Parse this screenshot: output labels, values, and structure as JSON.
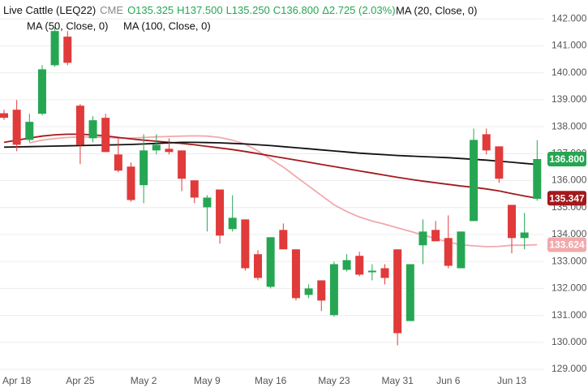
{
  "chart_data": {
    "type": "candlestick",
    "symbol": "Live Cattle (LEQ22)",
    "exchange": "CME",
    "ohlc_labels": [
      "O135.325",
      "H137.500",
      "L135.250",
      "C136.800",
      "Δ2.725 (2.03%)"
    ],
    "last_price_label": "136.800",
    "up_color": "#26a653",
    "down_color": "#e03a3a",
    "categories": [
      null,
      "Apr 18",
      null,
      null,
      null,
      null,
      "Apr 25",
      null,
      null,
      null,
      null,
      "May 2",
      null,
      null,
      null,
      null,
      "May 9",
      null,
      null,
      null,
      null,
      "May 16",
      null,
      null,
      null,
      null,
      "May 23",
      null,
      null,
      null,
      null,
      "May 31",
      null,
      null,
      null,
      "Jun 6",
      null,
      null,
      null,
      null,
      "Jun 13",
      null,
      null
    ],
    "open": [
      138.5,
      138.63,
      137.51,
      138.48,
      140.28,
      141.34,
      138.78,
      137.57,
      138.33,
      136.97,
      136.52,
      135.83,
      137.12,
      137.18,
      137.12,
      136.01,
      135.01,
      135.67,
      134.2,
      134.56,
      133.27,
      132.06,
      134.17,
      133.45,
      131.76,
      132.3,
      131.01,
      132.69,
      133.21,
      132.6,
      132.75,
      133.45,
      130.79,
      133.6,
      134.17,
      133.87,
      132.75,
      134.5,
      137.72,
      137.27,
      135.1,
      133.87,
      135.325
    ],
    "high": [
      138.63,
      138.99,
      138.48,
      140.28,
      141.7,
      141.55,
      138.84,
      138.39,
      138.48,
      137.57,
      136.67,
      137.72,
      137.72,
      137.57,
      137.12,
      136.01,
      135.46,
      135.67,
      135.46,
      134.56,
      133.42,
      133.9,
      134.41,
      133.45,
      132.15,
      132.3,
      132.99,
      133.27,
      133.36,
      132.9,
      132.9,
      133.45,
      132.9,
      134.56,
      134.5,
      134.71,
      134.11,
      137.93,
      137.93,
      137.27,
      135.1,
      134.8,
      137.5
    ],
    "low": [
      138.25,
      137.09,
      137.42,
      138.42,
      140.22,
      140.28,
      136.61,
      137.42,
      137.06,
      136.31,
      135.22,
      135.16,
      136.97,
      136.97,
      135.61,
      135.16,
      134.11,
      133.66,
      134.11,
      132.66,
      132.3,
      132.0,
      133.45,
      131.55,
      131.64,
      131.16,
      130.95,
      132.63,
      132.45,
      132.3,
      132.15,
      129.89,
      130.79,
      132.9,
      133.75,
      132.75,
      132.75,
      134.5,
      136.97,
      135.92,
      133.3,
      133.45,
      135.25
    ],
    "close": [
      138.33,
      137.33,
      138.18,
      140.13,
      141.55,
      140.37,
      137.33,
      138.24,
      137.06,
      136.37,
      135.28,
      137.12,
      137.33,
      137.06,
      136.07,
      135.37,
      135.37,
      133.96,
      134.62,
      132.75,
      132.39,
      133.9,
      133.45,
      131.64,
      132.0,
      131.55,
      132.9,
      133.05,
      132.51,
      132.66,
      132.39,
      130.34,
      132.9,
      134.11,
      133.75,
      132.84,
      134.11,
      137.51,
      137.12,
      136.07,
      133.87,
      134.075,
      136.8
    ],
    "series": [
      {
        "name": "MA (20, Close, 0)",
        "color": "#f2a9ab",
        "last_label": "133.624",
        "values": [
          null,
          null,
          137.4,
          137.5,
          137.56,
          137.6,
          137.62,
          137.62,
          137.6,
          137.58,
          137.58,
          137.6,
          137.62,
          137.64,
          137.65,
          137.66,
          137.65,
          137.6,
          137.5,
          137.35,
          137.1,
          136.8,
          136.5,
          136.15,
          135.8,
          135.45,
          135.1,
          134.85,
          134.65,
          134.5,
          134.38,
          134.25,
          134.12,
          133.98,
          133.85,
          133.72,
          133.62,
          133.58,
          133.55,
          133.56,
          133.6,
          133.6,
          133.624
        ]
      },
      {
        "name": "MA (50, Close, 0)",
        "color": "#a3191c",
        "last_label": "135.347",
        "values": [
          137.42,
          137.5,
          137.58,
          137.65,
          137.7,
          137.72,
          137.72,
          137.7,
          137.66,
          137.6,
          137.55,
          137.5,
          137.46,
          137.42,
          137.38,
          137.33,
          137.27,
          137.21,
          137.15,
          137.08,
          137.0,
          136.92,
          136.84,
          136.76,
          136.68,
          136.6,
          136.52,
          136.44,
          136.36,
          136.28,
          136.2,
          136.12,
          136.05,
          135.98,
          135.92,
          135.86,
          135.8,
          135.75,
          135.69,
          135.62,
          135.52,
          135.43,
          135.347
        ]
      },
      {
        "name": "MA (100, Close, 0)",
        "color": "#111111",
        "values": [
          137.24,
          137.25,
          137.26,
          137.27,
          137.28,
          137.29,
          137.3,
          137.31,
          137.32,
          137.33,
          137.34,
          137.36,
          137.38,
          137.4,
          137.42,
          137.42,
          137.41,
          137.4,
          137.38,
          137.36,
          137.33,
          137.3,
          137.26,
          137.22,
          137.18,
          137.14,
          137.1,
          137.06,
          137.02,
          136.99,
          136.96,
          136.93,
          136.91,
          136.89,
          136.87,
          136.85,
          136.82,
          136.79,
          136.76,
          136.72,
          136.68,
          136.64,
          136.6
        ]
      }
    ],
    "ylim": [
      128.7,
      142.7
    ],
    "yticks": [
      {
        "value": 129,
        "label": "129.000"
      },
      {
        "value": 130,
        "label": "130.000"
      },
      {
        "value": 131,
        "label": "131.000"
      },
      {
        "value": 132,
        "label": "132.000"
      },
      {
        "value": 133,
        "label": "133.000"
      },
      {
        "value": 134,
        "label": "134.000"
      },
      {
        "value": 135,
        "label": "135.000"
      },
      {
        "value": 136,
        "label": "136.000"
      },
      {
        "value": 137,
        "label": "137.000"
      },
      {
        "value": 138,
        "label": "138.000"
      },
      {
        "value": 139,
        "label": "139.000"
      },
      {
        "value": 140,
        "label": "140.000"
      },
      {
        "value": 141,
        "label": "141.000"
      },
      {
        "value": 142,
        "label": "142.000"
      }
    ],
    "grid": true
  }
}
